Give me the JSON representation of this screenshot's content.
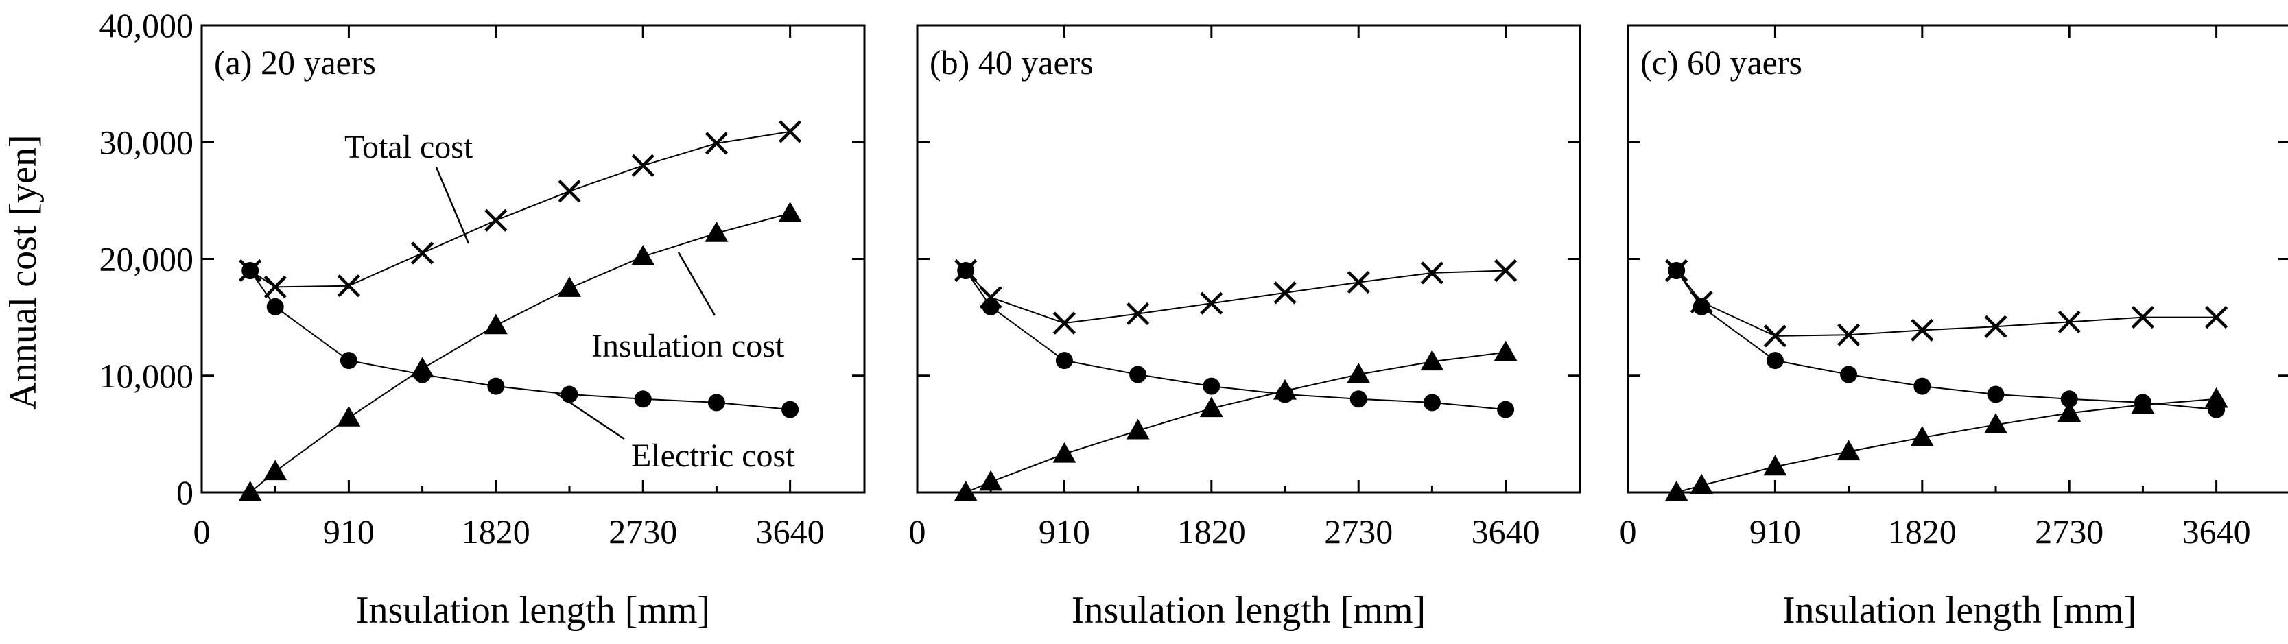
{
  "figure": {
    "ylabel": "Annual cost [yen]",
    "y_tick_labels": [
      "0",
      "10,000",
      "20,000",
      "30,000",
      "40,000"
    ],
    "annotations": {
      "total": "Total cost",
      "insulation": "Insulation cost",
      "electric": "Electric cost"
    }
  },
  "chart_data": [
    {
      "type": "line",
      "title": "(a) 20 yaers",
      "xlabel": "Insulation length [mm]",
      "ylabel": "Annual cost [yen]",
      "x_tick_labels": [
        "0",
        "910",
        "1820",
        "2730",
        "3640"
      ],
      "xlim": [
        0,
        4100
      ],
      "ylim": [
        0,
        40000
      ],
      "series": [
        {
          "name": "Total cost",
          "marker": "x",
          "x": [
            300,
            455,
            910,
            1365,
            1820,
            2275,
            2730,
            3185,
            3640
          ],
          "values": [
            19000,
            17600,
            17700,
            20500,
            23300,
            25800,
            28000,
            29900,
            30900
          ]
        },
        {
          "name": "Insulation cost",
          "marker": "triangle",
          "x": [
            300,
            455,
            910,
            1365,
            1820,
            2275,
            2730,
            3185,
            3640
          ],
          "values": [
            0,
            1800,
            6400,
            10600,
            14300,
            17500,
            20200,
            22200,
            23900
          ]
        },
        {
          "name": "Electric cost",
          "marker": "circle",
          "x": [
            300,
            455,
            910,
            1365,
            1820,
            2275,
            2730,
            3185,
            3640
          ],
          "values": [
            19000,
            15900,
            11300,
            10100,
            9100,
            8400,
            8000,
            7700,
            7100
          ]
        }
      ]
    },
    {
      "type": "line",
      "title": "(b) 40 yaers",
      "xlabel": "Insulation length [mm]",
      "x_tick_labels": [
        "0",
        "910",
        "1820",
        "2730",
        "3640"
      ],
      "xlim": [
        0,
        4100
      ],
      "ylim": [
        0,
        40000
      ],
      "series": [
        {
          "name": "Total cost",
          "marker": "x",
          "x": [
            300,
            455,
            910,
            1365,
            1820,
            2275,
            2730,
            3185,
            3640
          ],
          "values": [
            19000,
            16700,
            14500,
            15300,
            16200,
            17100,
            18000,
            18800,
            19000
          ]
        },
        {
          "name": "Insulation cost",
          "marker": "triangle",
          "x": [
            300,
            455,
            910,
            1365,
            1820,
            2275,
            2730,
            3185,
            3640
          ],
          "values": [
            0,
            900,
            3300,
            5300,
            7200,
            8700,
            10100,
            11200,
            12000
          ]
        },
        {
          "name": "Electric cost",
          "marker": "circle",
          "x": [
            300,
            455,
            910,
            1365,
            1820,
            2275,
            2730,
            3185,
            3640
          ],
          "values": [
            19000,
            15900,
            11300,
            10100,
            9100,
            8400,
            8000,
            7700,
            7100
          ]
        }
      ]
    },
    {
      "type": "line",
      "title": "(c) 60 yaers",
      "xlabel": "Insulation length [mm]",
      "x_tick_labels": [
        "0",
        "910",
        "1820",
        "2730",
        "3640"
      ],
      "xlim": [
        0,
        4100
      ],
      "ylim": [
        0,
        40000
      ],
      "series": [
        {
          "name": "Total cost",
          "marker": "x",
          "x": [
            300,
            455,
            910,
            1365,
            1820,
            2275,
            2730,
            3185,
            3640
          ],
          "values": [
            19000,
            16300,
            13400,
            13500,
            13900,
            14200,
            14600,
            15000,
            15000
          ]
        },
        {
          "name": "Insulation cost",
          "marker": "triangle",
          "x": [
            300,
            455,
            910,
            1365,
            1820,
            2275,
            2730,
            3185,
            3640
          ],
          "values": [
            0,
            600,
            2200,
            3500,
            4700,
            5800,
            6800,
            7500,
            8000
          ]
        },
        {
          "name": "Electric cost",
          "marker": "circle",
          "x": [
            300,
            455,
            910,
            1365,
            1820,
            2275,
            2730,
            3185,
            3640
          ],
          "values": [
            19000,
            15900,
            11300,
            10100,
            9100,
            8400,
            8000,
            7700,
            7100
          ]
        }
      ]
    }
  ]
}
